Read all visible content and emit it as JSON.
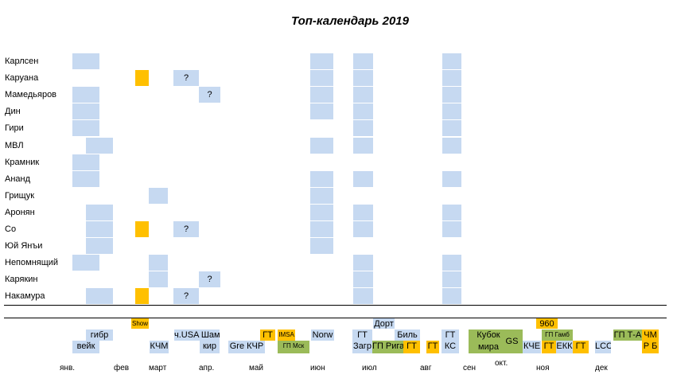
{
  "chart_data": {
    "type": "table",
    "title": "Топ-календарь 2019",
    "colors": {
      "participation": "#c6d9f1",
      "show": "#ffc000",
      "grandprix": "#9bbb59"
    },
    "players": [
      {
        "name": "Карлсен",
        "cells": [
          {
            "col": "jan1"
          },
          {
            "col": "jun"
          },
          {
            "col": "jul"
          },
          {
            "col": "aug"
          }
        ]
      },
      {
        "name": "Каруана",
        "cells": [
          {
            "col": "mar0",
            "type": "orange"
          },
          {
            "col": "apr1",
            "text": "?"
          },
          {
            "col": "jun"
          },
          {
            "col": "jul"
          },
          {
            "col": "aug"
          }
        ]
      },
      {
        "name": "Мамедьяров",
        "cells": [
          {
            "col": "jan1"
          },
          {
            "col": "apr2",
            "text": "?"
          },
          {
            "col": "jun"
          },
          {
            "col": "jul"
          },
          {
            "col": "aug"
          }
        ]
      },
      {
        "name": "Дин",
        "cells": [
          {
            "col": "jan1"
          },
          {
            "col": "jun"
          },
          {
            "col": "jul"
          },
          {
            "col": "aug"
          }
        ]
      },
      {
        "name": "Гири",
        "cells": [
          {
            "col": "jan1"
          },
          {
            "col": "jul"
          },
          {
            "col": "aug"
          }
        ]
      },
      {
        "name": "МВЛ",
        "cells": [
          {
            "col": "jan2"
          },
          {
            "col": "jun"
          },
          {
            "col": "jul"
          },
          {
            "col": "aug"
          }
        ]
      },
      {
        "name": "Крамник",
        "cells": [
          {
            "col": "jan1"
          }
        ]
      },
      {
        "name": "Ананд",
        "cells": [
          {
            "col": "jan1"
          },
          {
            "col": "jun"
          },
          {
            "col": "jul"
          },
          {
            "col": "aug"
          }
        ]
      },
      {
        "name": "Грищук",
        "cells": [
          {
            "col": "mar1"
          },
          {
            "col": "jun"
          }
        ]
      },
      {
        "name": "Аронян",
        "cells": [
          {
            "col": "jan2"
          },
          {
            "col": "jun"
          },
          {
            "col": "jul"
          },
          {
            "col": "aug"
          }
        ]
      },
      {
        "name": "Со",
        "cells": [
          {
            "col": "jan2"
          },
          {
            "col": "mar0",
            "type": "orange"
          },
          {
            "col": "apr1",
            "text": "?"
          },
          {
            "col": "jun"
          },
          {
            "col": "jul"
          },
          {
            "col": "aug"
          }
        ]
      },
      {
        "name": "Юй Янъи",
        "cells": [
          {
            "col": "jan2"
          },
          {
            "col": "jun"
          }
        ]
      },
      {
        "name": "Непомнящий",
        "cells": [
          {
            "col": "jan1"
          },
          {
            "col": "mar1"
          },
          {
            "col": "jul"
          },
          {
            "col": "aug"
          }
        ]
      },
      {
        "name": "Карякин",
        "cells": [
          {
            "col": "mar1"
          },
          {
            "col": "apr2",
            "text": "?"
          },
          {
            "col": "jul"
          },
          {
            "col": "aug"
          }
        ]
      },
      {
        "name": "Накамура",
        "cells": [
          {
            "col": "jan2"
          },
          {
            "col": "mar0",
            "type": "orange"
          },
          {
            "col": "apr1",
            "text": "?"
          },
          {
            "col": "jul"
          },
          {
            "col": "aug"
          }
        ]
      }
    ],
    "events": [
      {
        "text": "Show",
        "type": "orange",
        "lane": 0,
        "col": "e_show",
        "small": true
      },
      {
        "text": "гибр",
        "type": "blue",
        "lane": 1,
        "col": "e_gibr"
      },
      {
        "text": "вейк",
        "type": "blue",
        "lane": 2,
        "col": "e_veik"
      },
      {
        "text": "КЧМ",
        "type": "blue",
        "lane": 2,
        "col": "e_kchm"
      },
      {
        "text": "ч.USA Шам",
        "type": "blue",
        "lane": 1,
        "col": "e_usa"
      },
      {
        "text": "кир",
        "type": "blue",
        "lane": 2,
        "col": "e_kir"
      },
      {
        "text": "Gre  КЧР",
        "type": "blue",
        "lane": 2,
        "col": "e_gre"
      },
      {
        "text": "ГТ",
        "type": "orange",
        "lane": 1,
        "col": "e_gt1"
      },
      {
        "text": "IMSA",
        "type": "orange",
        "lane": 1,
        "col": "e_imsa",
        "small": true
      },
      {
        "text": "ГП Мск",
        "type": "green",
        "lane": 2,
        "col": "e_gpm",
        "small": true
      },
      {
        "text": "Norw",
        "type": "blue",
        "lane": 1,
        "col": "e_norw"
      },
      {
        "text": "Дорт",
        "type": "blue",
        "lane": 0,
        "col": "e_dort"
      },
      {
        "text": "ГТ",
        "type": "blue",
        "lane": 1,
        "col": "e_gt2"
      },
      {
        "text": "Загр",
        "type": "blue",
        "lane": 2,
        "col": "e_gt2"
      },
      {
        "text": "ГП Рига",
        "type": "green",
        "lane": 2,
        "col": "e_riga"
      },
      {
        "text": "Биль",
        "type": "blue",
        "lane": 1,
        "col": "e_bil"
      },
      {
        "text": "ГТ",
        "type": "orange",
        "lane": 2,
        "col": "e_gt3"
      },
      {
        "text": "ГТ",
        "type": "orange",
        "lane": 2,
        "col": "e_gt4"
      },
      {
        "text": "ГТ",
        "type": "blue",
        "lane": 1,
        "col": "e_ks"
      },
      {
        "text": "КС",
        "type": "blue",
        "lane": 2,
        "col": "e_ks"
      },
      {
        "text": "Кубок мира",
        "type": "green",
        "lane": 3,
        "col": "e_wc"
      },
      {
        "text": "GS",
        "type": "green",
        "lane": 3,
        "col": "e_gs"
      },
      {
        "text": "КЧЕ",
        "type": "blue",
        "lane": 2,
        "col": "e_kche"
      },
      {
        "text": "960",
        "type": "orange",
        "lane": 0,
        "col": "e_960"
      },
      {
        "text": "ГП Гамб",
        "type": "green",
        "lane": 1,
        "col": "e_gamb",
        "small": true
      },
      {
        "text": "ГТ",
        "type": "orange",
        "lane": 2,
        "col": "e_gt5"
      },
      {
        "text": "ЕКК",
        "type": "blue",
        "lane": 2,
        "col": "e_ekk"
      },
      {
        "text": "ГТ",
        "type": "orange",
        "lane": 2,
        "col": "e_gt6"
      },
      {
        "text": "LCC",
        "type": "blue",
        "lane": 2,
        "col": "e_lcc"
      },
      {
        "text": "ГП Т-А",
        "type": "green",
        "lane": 1,
        "col": "e_ta"
      },
      {
        "text": "ЧМ",
        "type": "orange",
        "lane": 1,
        "col": "e_chm"
      },
      {
        "text": "Р Б",
        "type": "orange",
        "lane": 2,
        "col": "e_chm"
      }
    ],
    "months": [
      "янв.",
      "фев",
      "март",
      "апр.",
      "май",
      "июн",
      "июл",
      "авг",
      "сен",
      "окт.",
      "ноя",
      "дек"
    ]
  }
}
